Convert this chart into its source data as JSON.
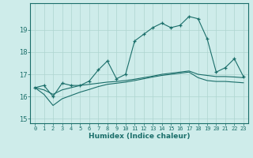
{
  "xlabel": "Humidex (Indice chaleur)",
  "ylabel": "",
  "background_color": "#ceecea",
  "grid_color": "#aed4d0",
  "line_color": "#1a6e6a",
  "x_values": [
    0,
    1,
    2,
    3,
    4,
    5,
    6,
    7,
    8,
    9,
    10,
    11,
    12,
    13,
    14,
    15,
    16,
    17,
    18,
    19,
    20,
    21,
    22,
    23
  ],
  "main_line": [
    16.4,
    16.5,
    16.0,
    16.6,
    16.5,
    16.5,
    16.7,
    17.2,
    17.6,
    16.8,
    17.0,
    18.5,
    18.8,
    19.1,
    19.3,
    19.1,
    19.2,
    19.6,
    19.5,
    18.6,
    17.1,
    17.3,
    17.7,
    16.9
  ],
  "smooth_line1": [
    16.4,
    16.3,
    16.1,
    16.3,
    16.4,
    16.5,
    16.55,
    16.6,
    16.65,
    16.68,
    16.72,
    16.78,
    16.85,
    16.92,
    17.0,
    17.05,
    17.1,
    17.15,
    17.0,
    16.95,
    16.9,
    16.9,
    16.88,
    16.85
  ],
  "smooth_line2": [
    16.4,
    16.1,
    15.6,
    15.9,
    16.05,
    16.2,
    16.32,
    16.45,
    16.55,
    16.6,
    16.65,
    16.72,
    16.8,
    16.88,
    16.95,
    17.0,
    17.05,
    17.1,
    16.85,
    16.72,
    16.68,
    16.68,
    16.65,
    16.62
  ],
  "ylim": [
    14.8,
    20.2
  ],
  "yticks": [
    15,
    16,
    17,
    18,
    19
  ],
  "xlim": [
    -0.5,
    23.5
  ]
}
